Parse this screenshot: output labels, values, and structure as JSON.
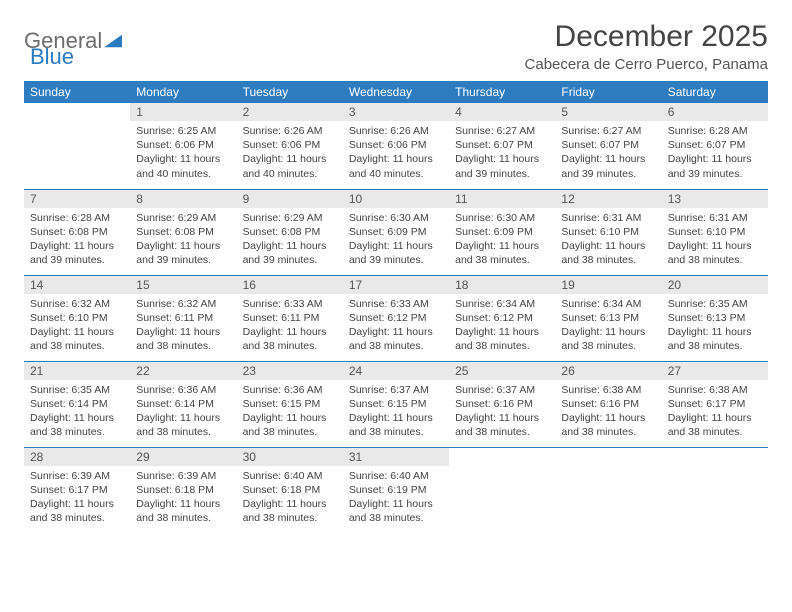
{
  "logo": {
    "text1": "General",
    "text2": "Blue"
  },
  "title": "December 2025",
  "location": "Cabecera de Cerro Puerco, Panama",
  "colors": {
    "header_bg": "#2e7cc0",
    "header_text": "#ffffff",
    "daynum_bg": "#e9e9e9",
    "cell_border": "#2e7cc0",
    "logo_gray": "#6d6d6d",
    "logo_blue": "#2a7ac0"
  },
  "day_names": [
    "Sunday",
    "Monday",
    "Tuesday",
    "Wednesday",
    "Thursday",
    "Friday",
    "Saturday"
  ],
  "weeks": [
    [
      null,
      {
        "n": "1",
        "sr": "Sunrise: 6:25 AM",
        "ss": "Sunset: 6:06 PM",
        "dl": "Daylight: 11 hours and 40 minutes."
      },
      {
        "n": "2",
        "sr": "Sunrise: 6:26 AM",
        "ss": "Sunset: 6:06 PM",
        "dl": "Daylight: 11 hours and 40 minutes."
      },
      {
        "n": "3",
        "sr": "Sunrise: 6:26 AM",
        "ss": "Sunset: 6:06 PM",
        "dl": "Daylight: 11 hours and 40 minutes."
      },
      {
        "n": "4",
        "sr": "Sunrise: 6:27 AM",
        "ss": "Sunset: 6:07 PM",
        "dl": "Daylight: 11 hours and 39 minutes."
      },
      {
        "n": "5",
        "sr": "Sunrise: 6:27 AM",
        "ss": "Sunset: 6:07 PM",
        "dl": "Daylight: 11 hours and 39 minutes."
      },
      {
        "n": "6",
        "sr": "Sunrise: 6:28 AM",
        "ss": "Sunset: 6:07 PM",
        "dl": "Daylight: 11 hours and 39 minutes."
      }
    ],
    [
      {
        "n": "7",
        "sr": "Sunrise: 6:28 AM",
        "ss": "Sunset: 6:08 PM",
        "dl": "Daylight: 11 hours and 39 minutes."
      },
      {
        "n": "8",
        "sr": "Sunrise: 6:29 AM",
        "ss": "Sunset: 6:08 PM",
        "dl": "Daylight: 11 hours and 39 minutes."
      },
      {
        "n": "9",
        "sr": "Sunrise: 6:29 AM",
        "ss": "Sunset: 6:08 PM",
        "dl": "Daylight: 11 hours and 39 minutes."
      },
      {
        "n": "10",
        "sr": "Sunrise: 6:30 AM",
        "ss": "Sunset: 6:09 PM",
        "dl": "Daylight: 11 hours and 39 minutes."
      },
      {
        "n": "11",
        "sr": "Sunrise: 6:30 AM",
        "ss": "Sunset: 6:09 PM",
        "dl": "Daylight: 11 hours and 38 minutes."
      },
      {
        "n": "12",
        "sr": "Sunrise: 6:31 AM",
        "ss": "Sunset: 6:10 PM",
        "dl": "Daylight: 11 hours and 38 minutes."
      },
      {
        "n": "13",
        "sr": "Sunrise: 6:31 AM",
        "ss": "Sunset: 6:10 PM",
        "dl": "Daylight: 11 hours and 38 minutes."
      }
    ],
    [
      {
        "n": "14",
        "sr": "Sunrise: 6:32 AM",
        "ss": "Sunset: 6:10 PM",
        "dl": "Daylight: 11 hours and 38 minutes."
      },
      {
        "n": "15",
        "sr": "Sunrise: 6:32 AM",
        "ss": "Sunset: 6:11 PM",
        "dl": "Daylight: 11 hours and 38 minutes."
      },
      {
        "n": "16",
        "sr": "Sunrise: 6:33 AM",
        "ss": "Sunset: 6:11 PM",
        "dl": "Daylight: 11 hours and 38 minutes."
      },
      {
        "n": "17",
        "sr": "Sunrise: 6:33 AM",
        "ss": "Sunset: 6:12 PM",
        "dl": "Daylight: 11 hours and 38 minutes."
      },
      {
        "n": "18",
        "sr": "Sunrise: 6:34 AM",
        "ss": "Sunset: 6:12 PM",
        "dl": "Daylight: 11 hours and 38 minutes."
      },
      {
        "n": "19",
        "sr": "Sunrise: 6:34 AM",
        "ss": "Sunset: 6:13 PM",
        "dl": "Daylight: 11 hours and 38 minutes."
      },
      {
        "n": "20",
        "sr": "Sunrise: 6:35 AM",
        "ss": "Sunset: 6:13 PM",
        "dl": "Daylight: 11 hours and 38 minutes."
      }
    ],
    [
      {
        "n": "21",
        "sr": "Sunrise: 6:35 AM",
        "ss": "Sunset: 6:14 PM",
        "dl": "Daylight: 11 hours and 38 minutes."
      },
      {
        "n": "22",
        "sr": "Sunrise: 6:36 AM",
        "ss": "Sunset: 6:14 PM",
        "dl": "Daylight: 11 hours and 38 minutes."
      },
      {
        "n": "23",
        "sr": "Sunrise: 6:36 AM",
        "ss": "Sunset: 6:15 PM",
        "dl": "Daylight: 11 hours and 38 minutes."
      },
      {
        "n": "24",
        "sr": "Sunrise: 6:37 AM",
        "ss": "Sunset: 6:15 PM",
        "dl": "Daylight: 11 hours and 38 minutes."
      },
      {
        "n": "25",
        "sr": "Sunrise: 6:37 AM",
        "ss": "Sunset: 6:16 PM",
        "dl": "Daylight: 11 hours and 38 minutes."
      },
      {
        "n": "26",
        "sr": "Sunrise: 6:38 AM",
        "ss": "Sunset: 6:16 PM",
        "dl": "Daylight: 11 hours and 38 minutes."
      },
      {
        "n": "27",
        "sr": "Sunrise: 6:38 AM",
        "ss": "Sunset: 6:17 PM",
        "dl": "Daylight: 11 hours and 38 minutes."
      }
    ],
    [
      {
        "n": "28",
        "sr": "Sunrise: 6:39 AM",
        "ss": "Sunset: 6:17 PM",
        "dl": "Daylight: 11 hours and 38 minutes."
      },
      {
        "n": "29",
        "sr": "Sunrise: 6:39 AM",
        "ss": "Sunset: 6:18 PM",
        "dl": "Daylight: 11 hours and 38 minutes."
      },
      {
        "n": "30",
        "sr": "Sunrise: 6:40 AM",
        "ss": "Sunset: 6:18 PM",
        "dl": "Daylight: 11 hours and 38 minutes."
      },
      {
        "n": "31",
        "sr": "Sunrise: 6:40 AM",
        "ss": "Sunset: 6:19 PM",
        "dl": "Daylight: 11 hours and 38 minutes."
      },
      null,
      null,
      null
    ]
  ]
}
